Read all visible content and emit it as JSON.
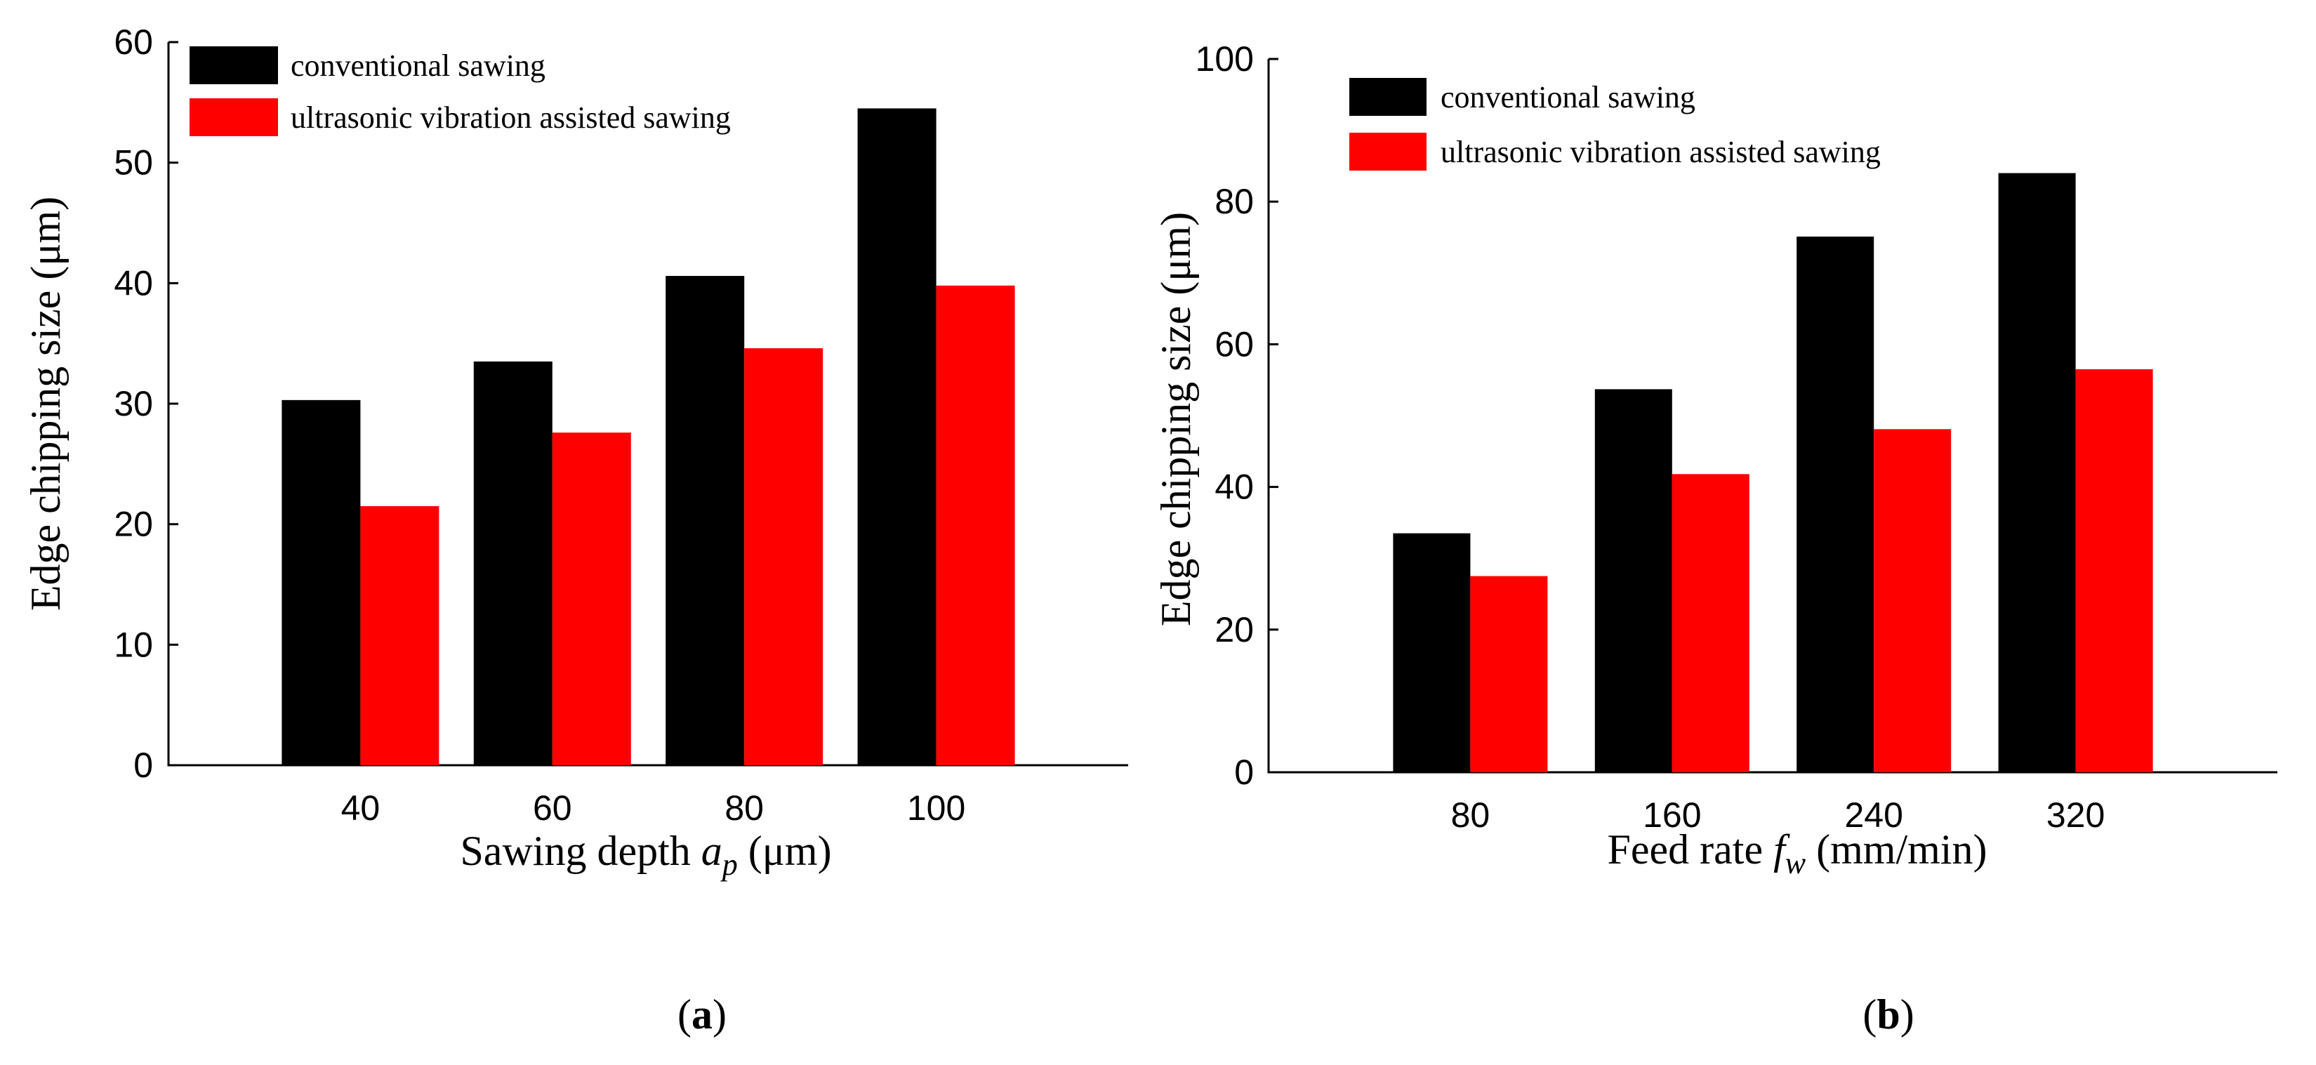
{
  "chart_data": [
    {
      "type": "bar",
      "panel_label": "a",
      "categories": [
        "40",
        "60",
        "80",
        "100"
      ],
      "series": [
        {
          "name": "conventional sawing",
          "color": "#000000",
          "values": [
            30.3,
            33.5,
            40.6,
            54.5
          ]
        },
        {
          "name": "ultrasonic vibration assisted sawing",
          "color": "#ff0000",
          "values": [
            21.5,
            27.6,
            34.6,
            39.8
          ]
        }
      ],
      "ylabel": "Edge chipping size  (μm)",
      "xlabel": {
        "prefix": "Sawing depth ",
        "symbol": "a",
        "subscript": "p",
        "suffix": " (μm)"
      },
      "ylim": [
        0,
        60
      ],
      "yticks": [
        0,
        10,
        20,
        30,
        40,
        50,
        60
      ],
      "legend": "top-left"
    },
    {
      "type": "bar",
      "panel_label": "b",
      "categories": [
        "80",
        "160",
        "240",
        "320"
      ],
      "series": [
        {
          "name": "conventional sawing",
          "color": "#000000",
          "values": [
            33.5,
            53.7,
            75.1,
            84.0
          ]
        },
        {
          "name": "ultrasonic vibration assisted sawing",
          "color": "#ff0000",
          "values": [
            27.5,
            41.8,
            48.1,
            56.5
          ]
        }
      ],
      "ylabel": "Edge chipping size (μm)",
      "xlabel": {
        "prefix": "Feed rate ",
        "symbol": "f",
        "subscript": "w",
        "suffix": " (mm/min)"
      },
      "ylim": [
        0,
        100
      ],
      "yticks": [
        0,
        20,
        40,
        60,
        80,
        100
      ],
      "legend": "top-left"
    }
  ]
}
